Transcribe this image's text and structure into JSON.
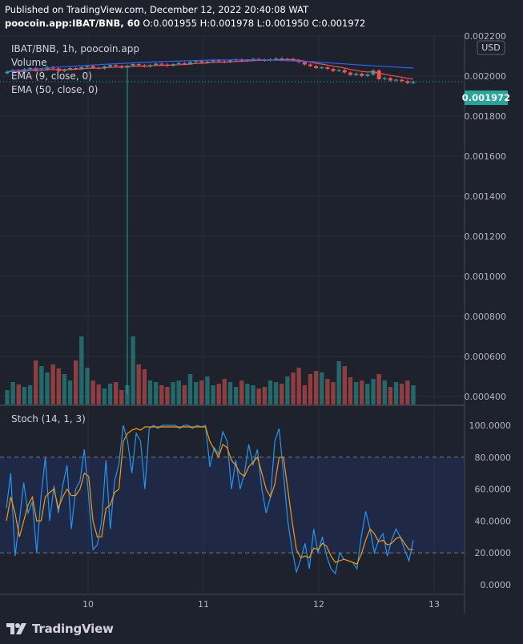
{
  "header": {
    "published": "Published on TradingView.com, December 12, 2022 20:40:08 WAT",
    "symbol_line": "poocoin.app:IBAT/BNB, 60",
    "ohlc": [
      {
        "k": "O:",
        "v": "0.001955"
      },
      {
        "k": "H:",
        "v": "0.001978"
      },
      {
        "k": "L:",
        "v": "0.001950"
      },
      {
        "k": "C:",
        "v": "0.001972"
      }
    ]
  },
  "legend": {
    "symbol": "IBAT/BNB, 1h, poocoin.app",
    "volume": "Volume",
    "ema9": "EMA (9, close, 0)",
    "ema50": "EMA (50, close, 0)",
    "stoch": "Stoch (14, 1, 3)"
  },
  "currency": "USD",
  "brand": "TradingView",
  "colors": {
    "background": "#1e222d",
    "up": "#26a69a",
    "down": "#ef5350",
    "ema9": "#ef5350",
    "ema50": "#2962ff",
    "stoch_k": "#2196f3",
    "stoch_d": "#ff9800",
    "band": "#2962ff",
    "last_price_tag": "#26a69a"
  },
  "chart_data": [
    {
      "type": "candlestick",
      "title": "IBAT/BNB, 1h, poocoin.app",
      "x_ticks": [
        "10",
        "11",
        "12",
        "13"
      ],
      "y_ticks": [
        "0.002200",
        "0.002000",
        "0.001800",
        "0.001600",
        "0.001400",
        "0.001200",
        "0.001000",
        "0.000800",
        "0.000600",
        "0.000400"
      ],
      "ylim": [
        0.00036,
        0.0022
      ],
      "last_price": "0.001972",
      "ohlc_close": [
        0.002022,
        0.00203,
        0.002018,
        0.002035,
        0.00204,
        0.002028,
        0.002033,
        0.002045,
        0.002038,
        0.002025,
        0.002032,
        0.00204,
        0.002036,
        0.002045,
        0.00205,
        0.002042,
        0.002038,
        0.002048,
        0.002055,
        0.00205,
        0.002043,
        0.002052,
        0.00206,
        0.002054,
        0.002048,
        0.002055,
        0.002062,
        0.002058,
        0.002052,
        0.00206,
        0.002065,
        0.002061,
        0.00207,
        0.002075,
        0.002068,
        0.002073,
        0.002079,
        0.002074,
        0.00207,
        0.002078,
        0.002083,
        0.002076,
        0.00208,
        0.002086,
        0.002082,
        0.002078,
        0.002084,
        0.002088,
        0.002081,
        0.002086,
        0.002079,
        0.00207,
        0.002058,
        0.00205,
        0.00204,
        0.002044,
        0.002036,
        0.002026,
        0.00203,
        0.002018,
        0.002006,
        0.002012,
        0.002001,
        0.002008,
        0.002028,
        0.001985,
        0.00199,
        0.001978,
        0.001982,
        0.001975,
        0.001966,
        0.001972
      ],
      "ema9": "red line tracking price",
      "ema50": [
        0.002024,
        0.002045,
        0.00206,
        0.002072,
        0.00208,
        0.002082,
        0.002072,
        0.002055,
        0.00204
      ],
      "volume_note": "volume histogram, scale not labeled"
    },
    {
      "type": "line",
      "title": "Stoch (14, 1, 3)",
      "y_ticks": [
        "100.0000",
        "80.0000",
        "60.0000",
        "40.0000",
        "20.0000",
        "0.0000"
      ],
      "ylim": [
        -3,
        105
      ],
      "band": [
        20,
        80
      ],
      "series": [
        {
          "name": "%K",
          "values": [
            48,
            70,
            18,
            40,
            64,
            45,
            52,
            20,
            55,
            80,
            40,
            62,
            45,
            62,
            75,
            35,
            60,
            65,
            85,
            55,
            22,
            25,
            40,
            78,
            35,
            65,
            76,
            100,
            90,
            70,
            95,
            90,
            60,
            98,
            100,
            98,
            100,
            100,
            100,
            100,
            98,
            100,
            100,
            98,
            100,
            99,
            100,
            74,
            86,
            82,
            96,
            90,
            60,
            78,
            60,
            70,
            88,
            75,
            85,
            60,
            45,
            55,
            90,
            98,
            70,
            40,
            22,
            8,
            16,
            26,
            10,
            35,
            20,
            30,
            18,
            10,
            7,
            20,
            16,
            15,
            14,
            10,
            30,
            46,
            35,
            20,
            28,
            32,
            18,
            28,
            35,
            30,
            22,
            15,
            28
          ]
        },
        {
          "name": "%D",
          "values": [
            40,
            55,
            45,
            30,
            40,
            50,
            55,
            40,
            40,
            55,
            58,
            60,
            48,
            55,
            60,
            56,
            56,
            60,
            70,
            68,
            40,
            30,
            30,
            48,
            50,
            58,
            60,
            90,
            95,
            97,
            98,
            97,
            99,
            99,
            99,
            99,
            99,
            99,
            99,
            99,
            99,
            99,
            99,
            99,
            99,
            99,
            99,
            90,
            85,
            80,
            88,
            86,
            78,
            75,
            70,
            68,
            74,
            77,
            80,
            70,
            60,
            55,
            63,
            80,
            80,
            60,
            40,
            22,
            17,
            18,
            17,
            23,
            22,
            26,
            24,
            18,
            14,
            15,
            16,
            15,
            14,
            13,
            19,
            28,
            35,
            32,
            27,
            28,
            25,
            26,
            29,
            30,
            26,
            22,
            22
          ]
        }
      ]
    }
  ]
}
